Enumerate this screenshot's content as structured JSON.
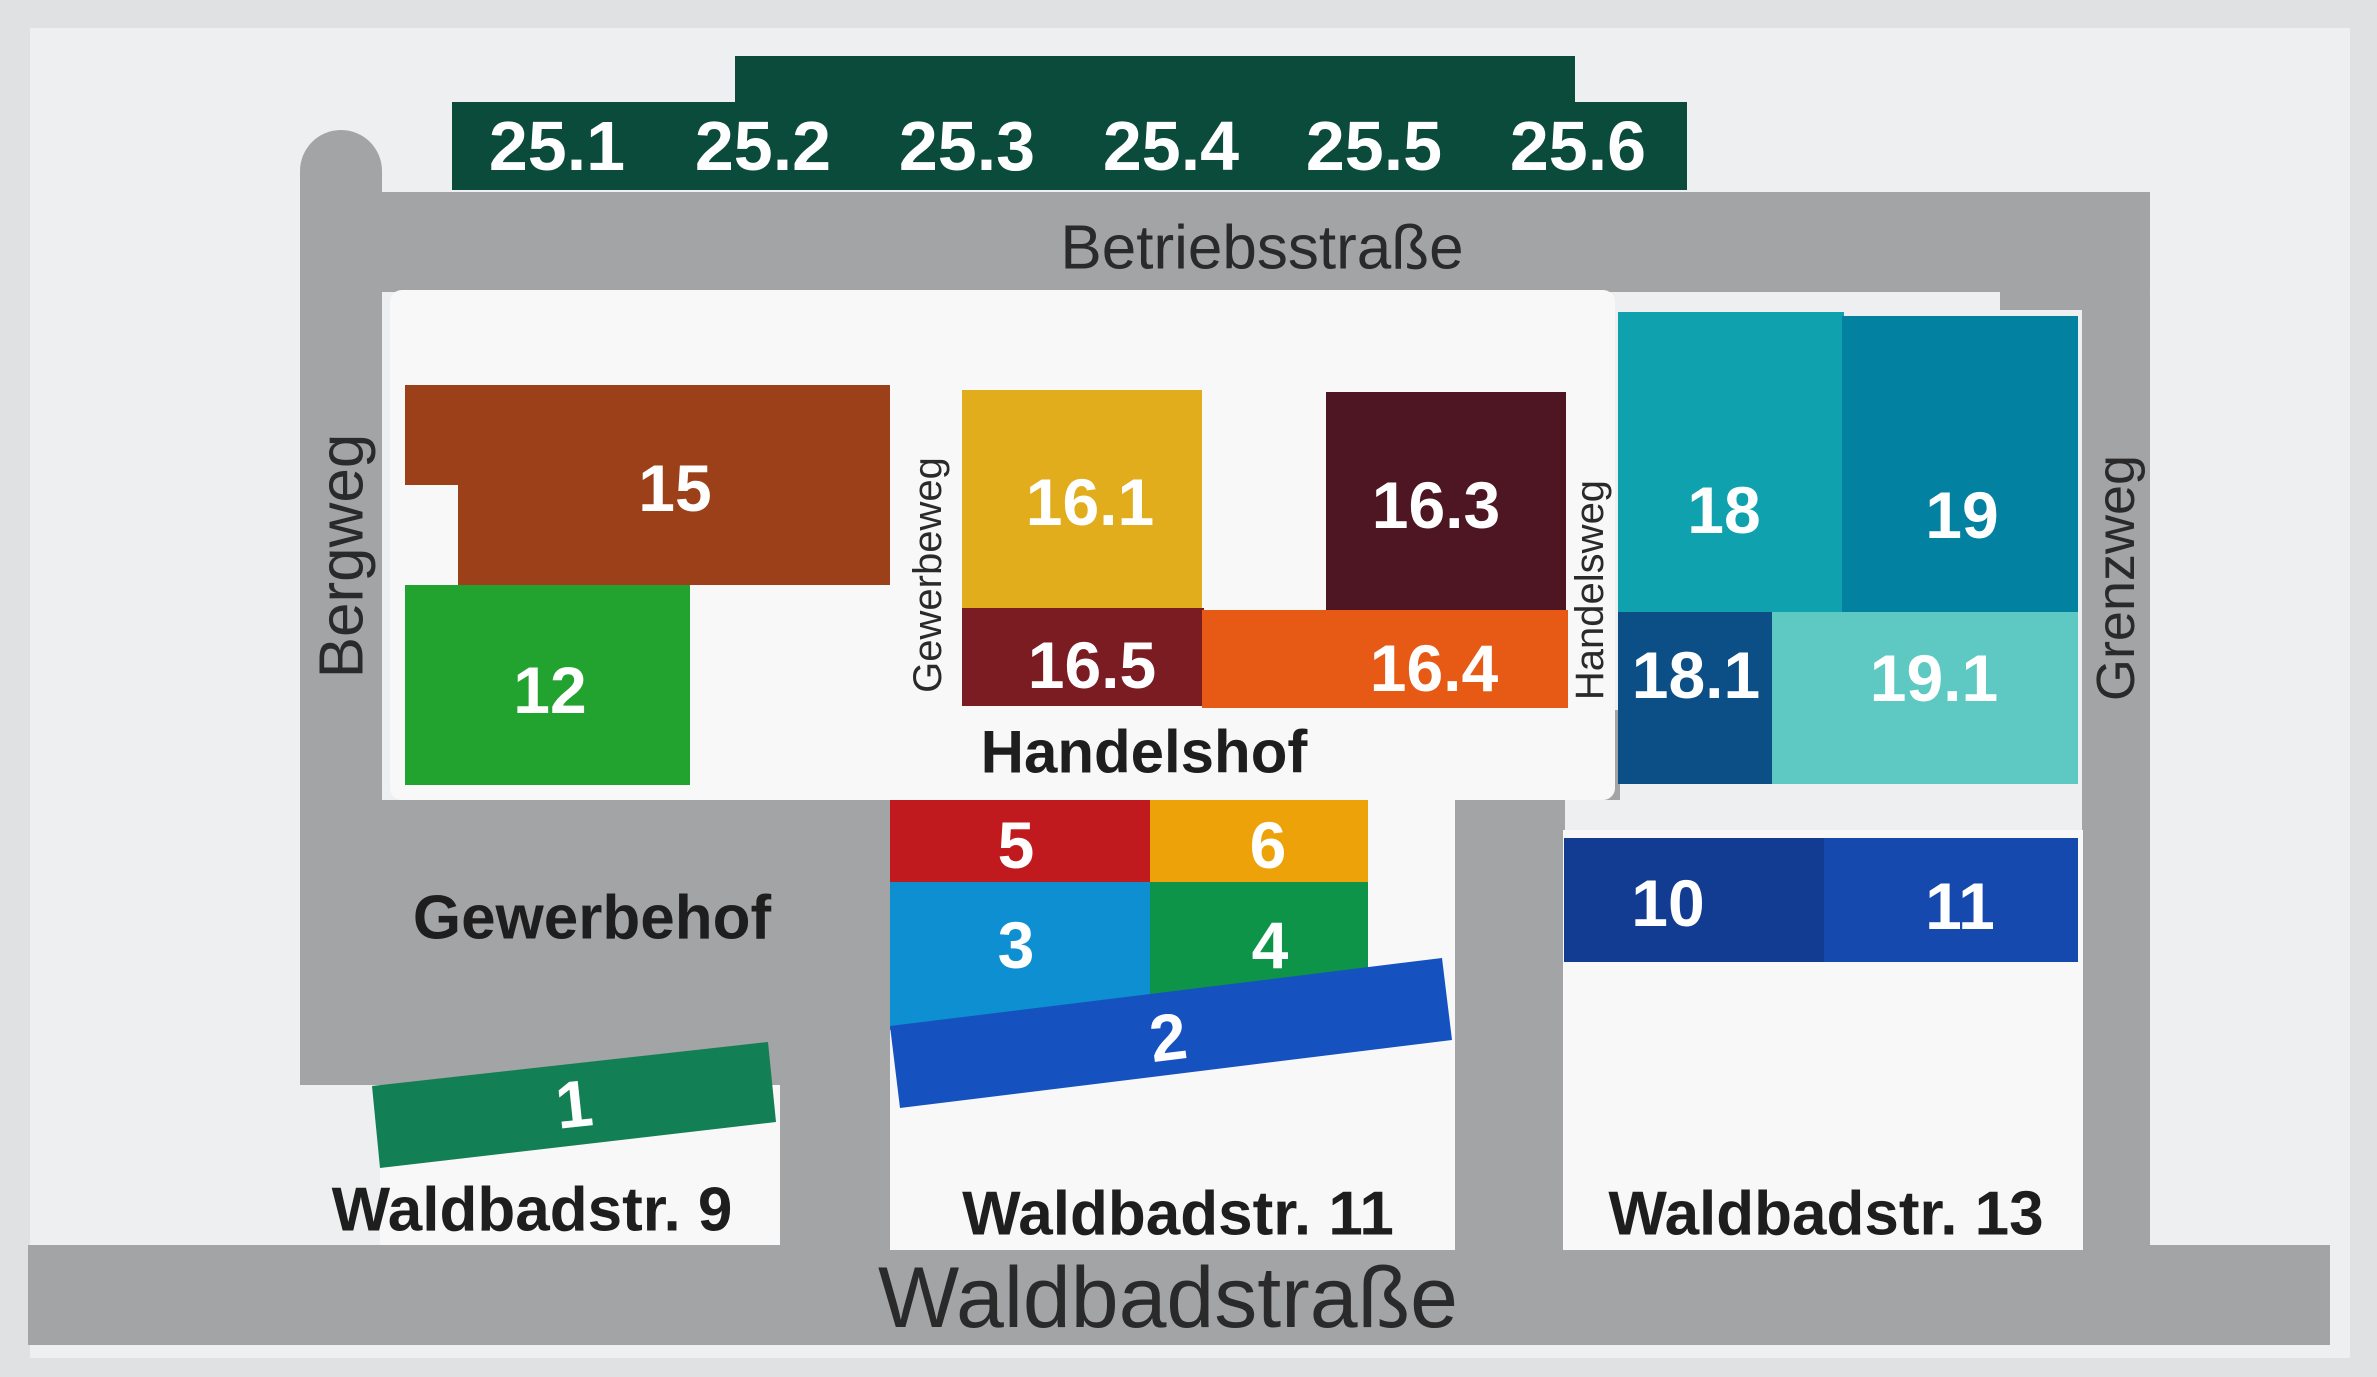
{
  "colors": {
    "background": "#dfe1e3",
    "board": "#eeeff0",
    "road": "#a3a4a6",
    "building_base": "#f8f8f8",
    "top_bar": "#0b4b3c",
    "lot_text": "#ffffff"
  },
  "streets": {
    "betriebsstrasse": "Betriebsstraße",
    "bergweg": "Bergweg",
    "gewerbeweg": "Gewerbeweg",
    "handelsweg": "Handelsweg",
    "grenzweg": "Grenzweg",
    "waldbadstrasse": "Waldbadstraße"
  },
  "areas": {
    "gewerbehof": "Gewerbehof",
    "handelshof": "Handelshof",
    "waldbadstr_9": "Waldbadstr. 9",
    "waldbadstr_11": "Waldbadstr. 11",
    "waldbadstr_13": "Waldbadstr. 13"
  },
  "top_units": [
    "25.1",
    "25.2",
    "25.3",
    "25.4",
    "25.5",
    "25.6"
  ],
  "units": [
    {
      "id": "15",
      "color": "#9c4019"
    },
    {
      "id": "12",
      "color": "#22a22f"
    },
    {
      "id": "16.1",
      "color": "#e2ad1c"
    },
    {
      "id": "16.3",
      "color": "#4e1622"
    },
    {
      "id": "16.5",
      "color": "#7b1b22"
    },
    {
      "id": "16.4",
      "color": "#e65a16"
    },
    {
      "id": "18",
      "color": "#0fa2ae"
    },
    {
      "id": "19",
      "color": "#0281a0"
    },
    {
      "id": "18.1",
      "color": "#0b4f86"
    },
    {
      "id": "19.1",
      "color": "#5ec9c3"
    },
    {
      "id": "5",
      "color": "#c0191e"
    },
    {
      "id": "6",
      "color": "#eea20a"
    },
    {
      "id": "3",
      "color": "#0d8fd1"
    },
    {
      "id": "4",
      "color": "#0d9448"
    },
    {
      "id": "2",
      "color": "#1552c0"
    },
    {
      "id": "10",
      "color": "#123b92"
    },
    {
      "id": "11",
      "color": "#1549ad"
    },
    {
      "id": "1",
      "color": "#137f54"
    }
  ]
}
